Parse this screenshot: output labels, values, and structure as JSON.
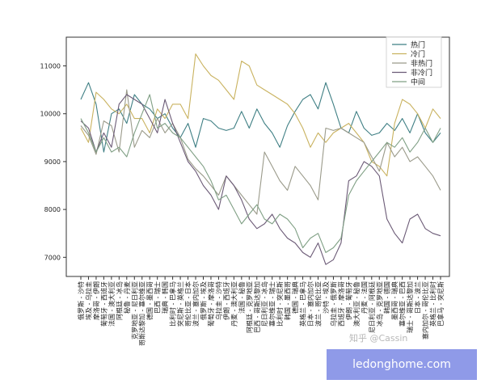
{
  "chart_data": {
    "type": "line",
    "title": "",
    "xlabel": "",
    "ylabel": "",
    "ylim": [
      6600,
      11600
    ],
    "yticks": [
      7000,
      8000,
      9000,
      10000,
      11000
    ],
    "grid": false,
    "legend_position": "top-right",
    "categories": [
      "俄罗斯 - 沙特",
      "埃及 - 乌拉圭",
      "摩洛哥 - 伊朗",
      "葡萄牙 - 西班牙",
      "法国 - 澳大利亚",
      "阿根廷 - 冰岛",
      "秘鲁 - 丹麦",
      "克罗地亚 - 尼日利亚",
      "哥斯达黎加 - 塞尔维亚",
      "德国 - 墨西哥",
      "巴西 - 瑞士",
      "瑞典 - 韩国",
      "比利时 - 巴拿马",
      "突尼斯 - 英格兰",
      "哥伦比亚 - 日本",
      "波兰 - 塞内加尔",
      "俄罗斯 - 埃及",
      "葡萄牙 - 摩洛哥",
      "乌拉圭 - 沙特",
      "伊朗 - 西班牙",
      "丹麦 - 澳大利亚",
      "法国 - 秘鲁",
      "阿根廷 - 克罗地亚",
      "巴西 - 哥斯达黎加",
      "尼日利亚 - 冰岛",
      "塞尔维亚 - 瑞士",
      "比利时 - 突尼斯",
      "韩国 - 墨西哥",
      "德国 - 瑞典",
      "英格兰 - 巴拿马",
      "日本 - 塞内加尔",
      "波兰 - 哥伦比亚",
      "沙特 - 埃及",
      "乌拉圭 - 俄罗斯",
      "西班牙 - 摩洛哥",
      "伊朗 - 葡萄牙",
      "澳大利亚 - 秘鲁",
      "丹麦 - 法国",
      "尼日利亚 - 阿根廷",
      "冰岛 - 克罗地亚",
      "韩国 - 德国",
      "墨西哥 - 瑞典",
      "塞尔维亚 - 巴西",
      "瑞士 - 哥斯达黎加",
      "日本 - 波兰",
      "塞内加尔 - 哥伦比亚",
      "英格兰 - 比利时",
      "巴拿马 - 突尼斯"
    ],
    "series": [
      {
        "name": "热门",
        "color": "#3f7f84",
        "values": [
          10300,
          10650,
          10200,
          9200,
          10000,
          10100,
          9800,
          10400,
          10200,
          10100,
          9900,
          10000,
          9700,
          9500,
          9800,
          9300,
          9900,
          9850,
          9700,
          9650,
          9700,
          10050,
          9700,
          10100,
          9800,
          9600,
          9300,
          9750,
          10050,
          10300,
          10400,
          10100,
          10650,
          10200,
          9700,
          9600,
          10050,
          9700,
          9550,
          9600,
          9800,
          9650,
          9900,
          9600,
          10000,
          9600,
          9400,
          9600
        ]
      },
      {
        "name": "冷门",
        "color": "#c9b25f",
        "values": [
          9700,
          9400,
          10450,
          10300,
          10100,
          10000,
          10200,
          9900,
          9900,
          9600,
          10100,
          9900,
          10200,
          10200,
          9900,
          11250,
          11000,
          10800,
          10700,
          10500,
          10300,
          11100,
          11000,
          10600,
          10500,
          10400,
          10300,
          10200,
          10000,
          9700,
          9300,
          9600,
          9400,
          9600,
          9700,
          9800,
          9600,
          9400,
          9000,
          8900,
          8700,
          9800,
          10300,
          10200,
          10000,
          9700,
          10100,
          9900
        ]
      },
      {
        "name": "非热门",
        "color": "#9a9a8a",
        "values": [
          9750,
          9550,
          9150,
          9850,
          9750,
          9200,
          10500,
          9300,
          9650,
          9500,
          9900,
          9600,
          9800,
          9500,
          9050,
          8850,
          8700,
          8500,
          8300,
          8700,
          8500,
          8300,
          8100,
          7900,
          9200,
          8900,
          8600,
          8400,
          8900,
          8700,
          8500,
          8200,
          9700,
          9650,
          9700,
          9600,
          9500,
          9400,
          9100,
          8800,
          9400,
          9100,
          9300,
          9000,
          9100,
          8900,
          8700,
          8400
        ]
      },
      {
        "name": "非冷门",
        "color": "#6b5a76",
        "values": [
          9850,
          9700,
          9200,
          9600,
          9300,
          10200,
          10400,
          10300,
          10200,
          9900,
          9600,
          10300,
          9800,
          9400,
          9000,
          8800,
          8500,
          8300,
          8000,
          8700,
          8500,
          8200,
          7800,
          7600,
          7700,
          7900,
          7600,
          7400,
          7300,
          7100,
          7000,
          7300,
          6850,
          6950,
          7300,
          8600,
          8700,
          9000,
          8900,
          8700,
          7800,
          7500,
          7300,
          7800,
          7900,
          7600,
          7500,
          7450
        ]
      },
      {
        "name": "中间",
        "color": "#7f9f84",
        "values": [
          9900,
          9600,
          9200,
          9500,
          9200,
          9300,
          9100,
          9600,
          10000,
          10400,
          9700,
          9800,
          9600,
          9500,
          9300,
          9100,
          8900,
          8600,
          8200,
          8300,
          8000,
          7700,
          7900,
          8100,
          7800,
          7700,
          7900,
          7800,
          7600,
          7200,
          7400,
          7500,
          7100,
          7200,
          7400,
          8300,
          8600,
          8800,
          9000,
          9200,
          9400,
          9300,
          9500,
          9200,
          9400,
          9700,
          9400,
          9700
        ]
      }
    ]
  },
  "watermark_text": "知乎 @Cassin",
  "site_badge_text": "ledonghome.com"
}
